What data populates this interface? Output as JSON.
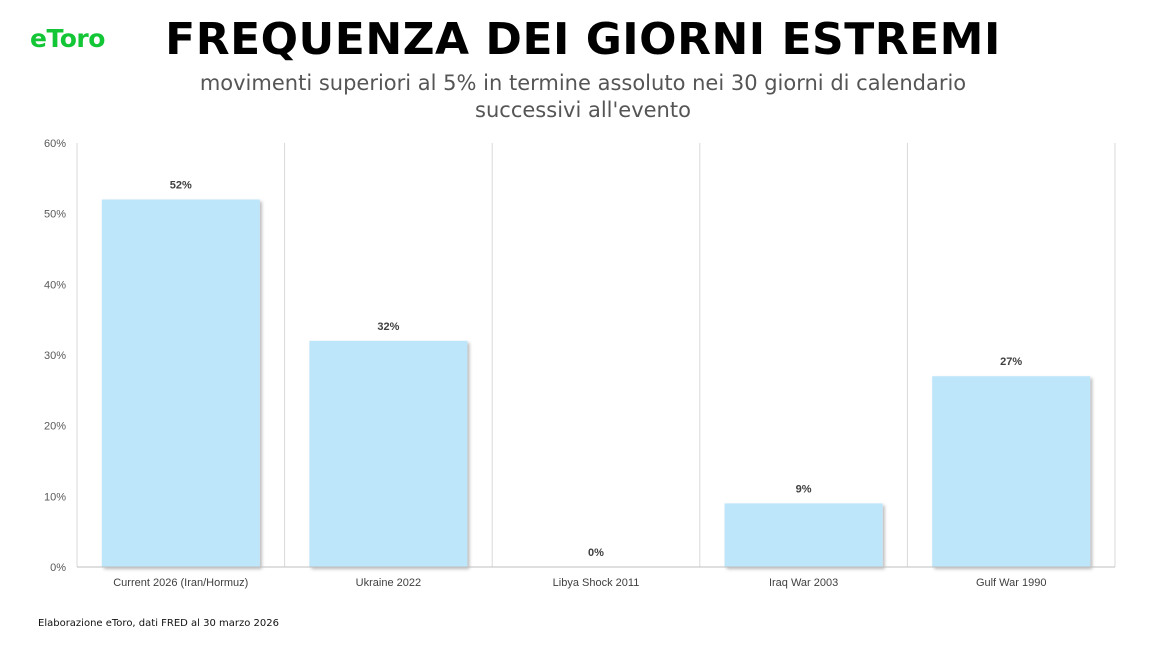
{
  "brand": {
    "logo_text": "eToro",
    "accent_color": "#13c636"
  },
  "header": {
    "title": "FREQUENZA DEI GIORNI ESTREMI",
    "subtitle_line1": "movimenti superiori al 5% in termine assoluto nei 30 giorni di calendario",
    "subtitle_line2": "successivi all'evento"
  },
  "footnote": "Elaborazione eToro, dati FRED al 30 marzo 2026",
  "chart_data": {
    "type": "bar",
    "categories": [
      "Current 2026 (Iran/Hormuz)",
      "Ukraine 2022",
      "Libya Shock 2011",
      "Iraq War 2003",
      "Gulf War 1990"
    ],
    "values": [
      52,
      32,
      0,
      9,
      27
    ],
    "value_labels": [
      "52%",
      "32%",
      "0%",
      "9%",
      "27%"
    ],
    "title": "",
    "xlabel": "",
    "ylabel": "",
    "ylim": [
      0,
      60
    ],
    "yticks": [
      0,
      10,
      20,
      30,
      40,
      50,
      60
    ],
    "ytick_labels": [
      "0%",
      "10%",
      "20%",
      "30%",
      "40%",
      "50%",
      "60%"
    ],
    "grid": "vertical separators between categories",
    "bar_color": "#bee6fa",
    "legend": "none"
  }
}
